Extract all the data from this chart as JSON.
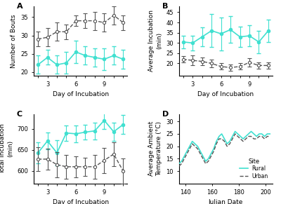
{
  "panel_A": {
    "xlabel": "Day of Incubation",
    "ylabel": "Number of Bouts",
    "ylim": [
      19,
      38
    ],
    "yticks": [
      20,
      25,
      30,
      35
    ],
    "xticks": [
      2,
      3,
      4,
      5,
      6,
      7,
      8,
      9,
      10,
      11
    ],
    "xtick_labels": [
      "",
      "3",
      "",
      "",
      "6",
      "",
      "",
      "9",
      "",
      ""
    ],
    "rural_x": [
      2,
      3,
      4,
      5,
      6,
      7,
      8,
      9,
      10,
      11
    ],
    "rural_y": [
      22.0,
      24.0,
      22.0,
      22.5,
      25.5,
      24.5,
      24.0,
      23.5,
      24.5,
      23.5
    ],
    "rural_err": [
      2.5,
      2.0,
      2.5,
      3.0,
      3.0,
      2.5,
      2.5,
      3.0,
      2.5,
      2.5
    ],
    "urban_x": [
      2,
      3,
      4,
      5,
      6,
      7,
      8,
      9,
      10,
      11
    ],
    "urban_y": [
      29.0,
      29.5,
      31.0,
      31.0,
      34.0,
      34.0,
      34.0,
      33.5,
      35.5,
      33.5
    ],
    "urban_err": [
      2.0,
      2.5,
      2.5,
      2.0,
      1.5,
      2.0,
      2.5,
      2.5,
      2.5,
      2.0
    ]
  },
  "panel_B": {
    "xlabel": "Day of Incubation",
    "ylabel": "Average Incubation\n(min)",
    "ylim": [
      14,
      48
    ],
    "yticks": [
      20,
      25,
      30,
      35,
      40,
      45
    ],
    "xticks": [
      2,
      3,
      4,
      5,
      6,
      7,
      8,
      9,
      10,
      11
    ],
    "xtick_labels": [
      "",
      "3",
      "",
      "",
      "6",
      "",
      "",
      "9",
      "",
      ""
    ],
    "rural_x": [
      2,
      3,
      4,
      5,
      6,
      7,
      8,
      9,
      10,
      11
    ],
    "rural_y": [
      30.5,
      30.0,
      33.0,
      36.0,
      34.5,
      36.5,
      33.0,
      33.5,
      30.5,
      36.0
    ],
    "rural_err": [
      3.0,
      3.5,
      4.5,
      8.0,
      8.0,
      6.5,
      5.0,
      5.0,
      5.5,
      5.5
    ],
    "urban_x": [
      2,
      3,
      4,
      5,
      6,
      7,
      8,
      9,
      10,
      11
    ],
    "urban_y": [
      22.0,
      21.5,
      21.0,
      20.0,
      18.5,
      18.0,
      18.5,
      20.5,
      19.0,
      19.0
    ],
    "urban_err": [
      1.5,
      2.5,
      2.0,
      2.0,
      1.5,
      1.5,
      1.5,
      2.0,
      1.5,
      1.5
    ]
  },
  "panel_C": {
    "xlabel": "Day of Incubation",
    "ylabel": "Total Incubation\n(min)",
    "ylim": [
      570,
      735
    ],
    "yticks": [
      600,
      650,
      700
    ],
    "xticks": [
      2,
      3,
      4,
      5,
      6,
      7,
      8,
      9,
      10,
      11
    ],
    "xtick_labels": [
      "",
      "3",
      "",
      "",
      "6",
      "",
      "",
      "9",
      "",
      ""
    ],
    "rural_x": [
      2,
      3,
      4,
      5,
      6,
      7,
      8,
      9,
      10,
      11
    ],
    "rural_y": [
      643.0,
      671.0,
      643.0,
      690.0,
      688.0,
      692.0,
      695.0,
      720.0,
      693.0,
      710.0
    ],
    "rural_err": [
      25,
      20,
      30,
      18,
      20,
      18,
      20,
      20,
      22,
      22
    ],
    "urban_x": [
      2,
      3,
      4,
      5,
      6,
      7,
      8,
      9,
      10,
      11
    ],
    "urban_y": [
      628.0,
      628.0,
      615.0,
      610.0,
      610.0,
      610.0,
      610.0,
      625.0,
      640.0,
      600.0
    ],
    "urban_err": [
      28,
      25,
      30,
      28,
      25,
      22,
      28,
      30,
      28,
      30
    ]
  },
  "panel_D": {
    "xlabel": "Julian Date",
    "ylabel": "Average Ambient\nTemperature (°C)",
    "ylim": [
      5,
      33
    ],
    "yticks": [
      10,
      15,
      20,
      25,
      30
    ],
    "xlim": [
      135,
      205
    ],
    "xticks": [
      140,
      160,
      180,
      200
    ],
    "rural_x": [
      135,
      137,
      139,
      141,
      143,
      145,
      147,
      149,
      151,
      153,
      155,
      157,
      159,
      161,
      163,
      165,
      167,
      169,
      171,
      173,
      175,
      177,
      179,
      181,
      183,
      185,
      187,
      189,
      191,
      193,
      195,
      197,
      199,
      201,
      203
    ],
    "rural_y": [
      13,
      14,
      16,
      18,
      20,
      22,
      21,
      20,
      18,
      16,
      14,
      15,
      17,
      19,
      22,
      24,
      25,
      23,
      21,
      22,
      24,
      26,
      25,
      24,
      23,
      24,
      25,
      26,
      25,
      24,
      25,
      25,
      24,
      25,
      25
    ],
    "urban_x": [
      135,
      137,
      139,
      141,
      143,
      145,
      147,
      149,
      151,
      153,
      155,
      157,
      159,
      161,
      163,
      165,
      167,
      169,
      171,
      173,
      175,
      177,
      179,
      181,
      183,
      185,
      187,
      189,
      191,
      193,
      195,
      197,
      199,
      201,
      203
    ],
    "urban_y": [
      12,
      13,
      15,
      17,
      19,
      21,
      20,
      19,
      17,
      15,
      13,
      14,
      16,
      18,
      21,
      23,
      23,
      22,
      20,
      21,
      23,
      25,
      24,
      23,
      22,
      23,
      24,
      24,
      23,
      23,
      24,
      24,
      23,
      24,
      24
    ],
    "legend_labels": [
      "Rural",
      "Urban"
    ],
    "legend_title": "Site"
  },
  "rural_color": "#40E0D0",
  "urban_color": "#555555",
  "rural_linestyle": "-",
  "urban_linestyle": "--"
}
